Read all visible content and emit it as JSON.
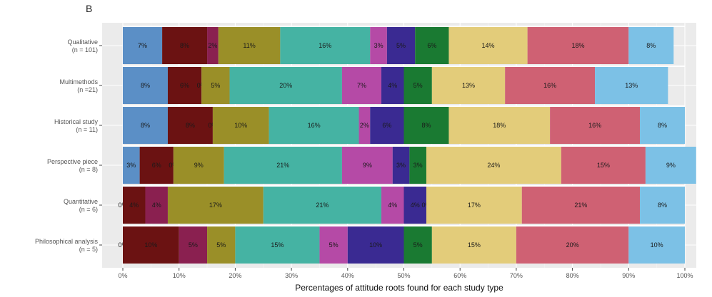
{
  "panel_label": "B",
  "chart_data": {
    "type": "bar",
    "orientation": "horizontal",
    "stacked": true,
    "normalized": true,
    "xlabel": "Percentages of attitude roots found for each study type",
    "xlim": [
      0,
      100
    ],
    "xticks": [
      "0%",
      "10%",
      "20%",
      "30%",
      "40%",
      "50%",
      "60%",
      "70%",
      "80%",
      "90%",
      "100%"
    ],
    "grid": true,
    "legend": false,
    "categories": [
      {
        "name": "Qualitative",
        "n": "(n = 101)"
      },
      {
        "name": "Multimethods",
        "n": "(n =21)"
      },
      {
        "name": "Historical study",
        "n": "(n = 11)"
      },
      {
        "name": "Perspective piece",
        "n": "(n = 8)"
      },
      {
        "name": "Quantitative",
        "n": "(n = 6)"
      },
      {
        "name": "Philosophical analysis",
        "n": "(n = 5)"
      }
    ],
    "segment_colors": [
      "#5b8fc6",
      "#6b1212",
      "#8a2050",
      "#9a8f28",
      "#45b3a3",
      "#b54aa6",
      "#3a2a92",
      "#1a7a32",
      "#e3cc7a",
      "#cf6173",
      "#7cc1e6"
    ],
    "segments": [
      [
        7,
        8,
        2,
        11,
        16,
        3,
        5,
        6,
        14,
        18,
        8
      ],
      [
        8,
        6,
        0,
        5,
        20,
        7,
        4,
        5,
        13,
        16,
        13
      ],
      [
        8,
        8,
        0,
        10,
        16,
        2,
        6,
        8,
        18,
        16,
        8
      ],
      [
        3,
        6,
        0,
        9,
        21,
        9,
        3,
        3,
        24,
        15,
        9
      ],
      [
        0,
        4,
        4,
        17,
        21,
        4,
        4,
        0,
        17,
        21,
        8
      ],
      [
        0,
        10,
        5,
        5,
        15,
        5,
        10,
        5,
        15,
        20,
        10
      ]
    ],
    "segment_labels": [
      [
        "7%",
        "8%",
        "2%",
        "11%",
        "16%",
        "3%",
        "5%",
        "6%",
        "14%",
        "18%",
        "8%"
      ],
      [
        "8%",
        "6%",
        "0%",
        "5%",
        "20%",
        "7%",
        "4%",
        "5%",
        "13%",
        "16%",
        "13%"
      ],
      [
        "8%",
        "8%",
        "0%",
        "10%",
        "16%",
        "2%",
        "6%",
        "8%",
        "18%",
        "16%",
        "8%"
      ],
      [
        "3%",
        "6%",
        "0%",
        "9%",
        "21%",
        "9%",
        "3%",
        "3%",
        "24%",
        "15%",
        "9%"
      ],
      [
        "0%",
        "4%",
        "4%",
        "17%",
        "21%",
        "4%",
        "4%",
        "0%",
        "17%",
        "21%",
        "8%"
      ],
      [
        "0%",
        "10%",
        "5%",
        "5%",
        "15%",
        "5%",
        "10%",
        "5%",
        "15%",
        "20%",
        "10%"
      ]
    ]
  }
}
